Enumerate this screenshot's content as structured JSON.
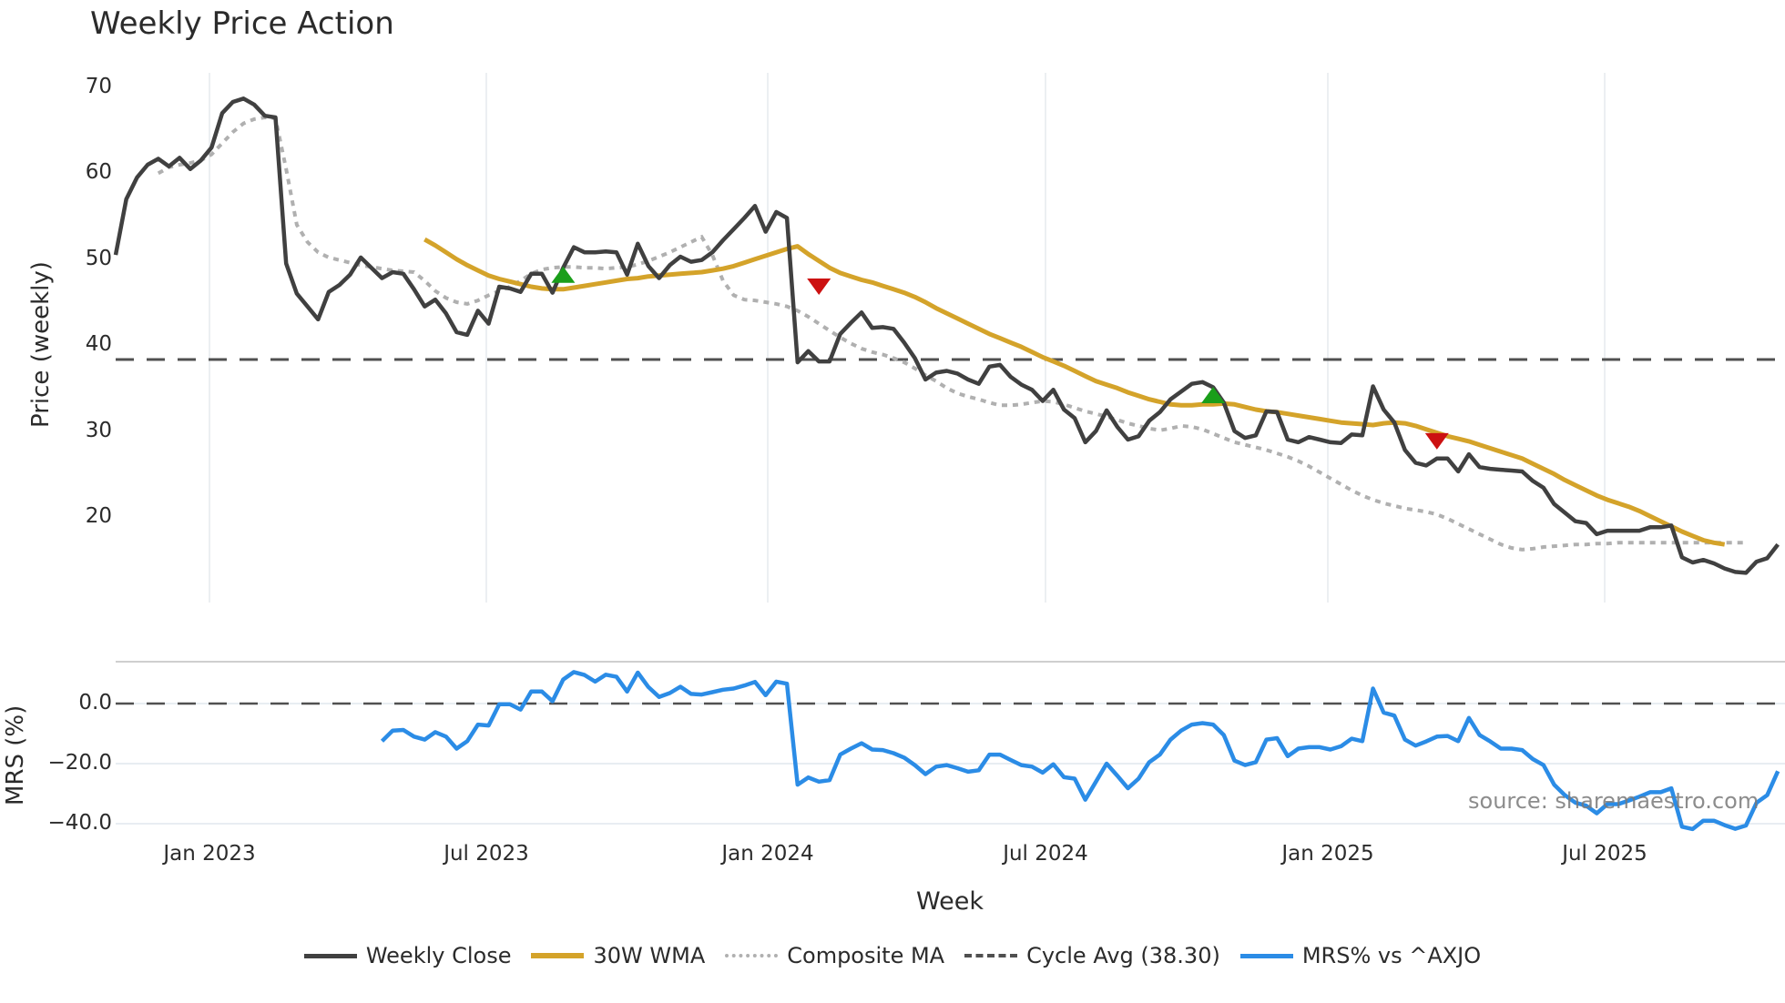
{
  "title": "Weekly Price Action",
  "source_note": "source: sharemaestro.com",
  "upper_axis": {
    "ylabel": "Price (weekly)",
    "yticks": [
      "70",
      "60",
      "50",
      "40",
      "30",
      "20"
    ]
  },
  "lower_axis": {
    "ylabel": "MRS (%)",
    "yticks": [
      "0.0",
      "−20.0",
      "−40.0"
    ]
  },
  "xaxis": {
    "xlabel": "Week",
    "xticks": [
      "Jan 2023",
      "Jul 2023",
      "Jan 2024",
      "Jul 2024",
      "Jan 2025",
      "Jul 2025"
    ]
  },
  "legend": [
    {
      "label": "Weekly Close",
      "color": "#404040",
      "style": "solid"
    },
    {
      "label": "30W WMA",
      "color": "#d4a32a",
      "style": "solid"
    },
    {
      "label": "Composite MA",
      "color": "#b0b0b0",
      "style": "dotted"
    },
    {
      "label": "Cycle Avg (38.30)",
      "color": "#505050",
      "style": "dashed"
    },
    {
      "label": "MRS% vs ^AXJO",
      "color": "#2b8ce6",
      "style": "solid"
    }
  ],
  "chart_data": [
    {
      "type": "line",
      "title": "Weekly Price Action",
      "xlabel": "Week",
      "ylabel": "Price (weekly)",
      "ylim": [
        10,
        72
      ],
      "xticks": [
        "Jan 2023",
        "Jul 2023",
        "Jan 2024",
        "Jul 2024",
        "Jan 2025",
        "Jul 2025"
      ],
      "x_start": "~Nov 2022 (weekly, 157 weeks)",
      "grid": "vertical at x ticks",
      "legend_position": "bottom center",
      "series": [
        {
          "name": "Weekly Close",
          "start_index": 0,
          "values": [
            50.5,
            57,
            59.5,
            61,
            61.7,
            60.8,
            61.8,
            60.5,
            61.5,
            63,
            67,
            68.3,
            68.7,
            68,
            66.7,
            66.5,
            49.5,
            46,
            44.5,
            43,
            46.2,
            47,
            48.2,
            50.2,
            49,
            47.8,
            48.5,
            48.3,
            46.5,
            44.5,
            45.3,
            43.7,
            41.5,
            41.2,
            44,
            42.5,
            46.8,
            46.6,
            46.2,
            48.3,
            48.3,
            46.1,
            49,
            51.4,
            50.8,
            50.8,
            50.9,
            50.8,
            48.2,
            51.8,
            49.2,
            47.8,
            49.3,
            50.3,
            49.7,
            49.9,
            50.8,
            52.2,
            53.5,
            54.8,
            56.2,
            53.2,
            55.5,
            54.8,
            38,
            39.3,
            38.1,
            38.1,
            41.3,
            42.6,
            43.8,
            42,
            42.1,
            41.9,
            40.3,
            38.5,
            36,
            36.8,
            37,
            36.7,
            36,
            35.5,
            37.5,
            37.7,
            36.3,
            35.4,
            34.8,
            33.5,
            34.8,
            32.5,
            31.5,
            28.7,
            30,
            32.4,
            30.5,
            29,
            29.4,
            31.2,
            32.2,
            33.7,
            34.6,
            35.5,
            35.7,
            35.1,
            33.3,
            30,
            29.2,
            29.5,
            32.3,
            32.2,
            29,
            28.7,
            29.3,
            29,
            28.7,
            28.6,
            29.6,
            29.5,
            35.2,
            32.5,
            31,
            27.8,
            26.3,
            26,
            26.8,
            26.8,
            25.3,
            27.3,
            25.8,
            25.6,
            25.5,
            25.4,
            25.3,
            24.2,
            23.4,
            21.5,
            20.5,
            19.5,
            19.3,
            18,
            18.4,
            18.4,
            18.4,
            18.4,
            18.8,
            18.8,
            19,
            15.3,
            14.7,
            15,
            14.6,
            14,
            13.6,
            13.5,
            14.8,
            15.2,
            16.8
          ]
        },
        {
          "name": "30W WMA",
          "start_index": 29,
          "values": [
            52.3,
            51.6,
            50.8,
            50,
            49.3,
            48.7,
            48.1,
            47.7,
            47.4,
            47.1,
            46.8,
            46.6,
            46.5,
            46.5,
            46.7,
            46.9,
            47.1,
            47.3,
            47.5,
            47.7,
            47.8,
            48,
            48.1,
            48.2,
            48.3,
            48.4,
            48.5,
            48.7,
            48.9,
            49.2,
            49.6,
            50,
            50.4,
            50.8,
            51.2,
            51.5,
            50.6,
            49.8,
            49,
            48.4,
            48,
            47.6,
            47.3,
            46.9,
            46.5,
            46.1,
            45.6,
            45,
            44.3,
            43.7,
            43.1,
            42.5,
            41.9,
            41.3,
            40.8,
            40.3,
            39.8,
            39.2,
            38.6,
            38.1,
            37.6,
            37,
            36.4,
            35.8,
            35.4,
            35,
            34.5,
            34.1,
            33.7,
            33.4,
            33.1,
            33,
            33,
            33.1,
            33.1,
            33.2,
            33.1,
            32.8,
            32.5,
            32.3,
            32.2,
            32,
            31.8,
            31.6,
            31.4,
            31.2,
            31,
            30.9,
            30.8,
            30.7,
            30.9,
            31,
            30.9,
            30.6,
            30.2,
            29.8,
            29.4,
            29.1,
            28.8,
            28.4,
            28,
            27.6,
            27.2,
            26.8,
            26.2,
            25.6,
            25,
            24.3,
            23.7,
            23.1,
            22.5,
            22,
            21.6,
            21.2,
            20.7,
            20.1,
            19.5,
            18.9,
            18.3,
            17.8,
            17.3,
            17,
            16.8
          ]
        },
        {
          "name": "Composite MA",
          "start_index": 4,
          "values": [
            60,
            60.7,
            61,
            61.2,
            61.5,
            62.2,
            63.5,
            64.8,
            65.8,
            66.3,
            66.5,
            66.4,
            60.5,
            54,
            52,
            50.8,
            50.2,
            49.9,
            49.6,
            49.3,
            49.1,
            48.9,
            48.7,
            48.6,
            48.5,
            47.5,
            46.3,
            45.5,
            45,
            44.8,
            45.2,
            45.8,
            46.3,
            46.8,
            47.5,
            48.3,
            48.8,
            49,
            49.1,
            49.1,
            49,
            49,
            48.9,
            49,
            49.1,
            49.4,
            49.8,
            50.3,
            50.8,
            51.4,
            52,
            52.6,
            50.5,
            47.5,
            45.8,
            45.3,
            45.2,
            45,
            44.8,
            44.5,
            44,
            43.3,
            42.5,
            41.7,
            40.9,
            40.2,
            39.6,
            39.2,
            38.9,
            38.5,
            38,
            37.3,
            36.5,
            35.8,
            35,
            34.4,
            34,
            33.7,
            33.3,
            33,
            33,
            33.1,
            33.3,
            33.5,
            33.4,
            33.1,
            32.7,
            32.3,
            32,
            31.7,
            31.3,
            30.9,
            30.6,
            30.3,
            30.1,
            30.3,
            30.6,
            30.5,
            30.2,
            29.7,
            29.2,
            28.7,
            28.4,
            28.1,
            27.8,
            27.4,
            27,
            26.5,
            25.9,
            25.2,
            24.5,
            23.8,
            23.1,
            22.5,
            22,
            21.6,
            21.3,
            21,
            20.8,
            20.6,
            20.3,
            19.8,
            19.2,
            18.6,
            18,
            17.4,
            16.8,
            16.4,
            16.2,
            16.3,
            16.5,
            16.6,
            16.7,
            16.8,
            16.8,
            16.9,
            16.9,
            17,
            17,
            17,
            17,
            17,
            17,
            17,
            17,
            17,
            17,
            17,
            17,
            17
          ]
        },
        {
          "name": "Cycle Avg (38.30)",
          "constant": 38.3
        }
      ],
      "signals": [
        {
          "type": "buy",
          "shape": "triangle-up",
          "color": "#1a9e1a",
          "index": 42,
          "value": 48.2
        },
        {
          "type": "sell",
          "shape": "triangle-down",
          "color": "#cc1111",
          "index": 66,
          "value": 46.8
        },
        {
          "type": "buy",
          "shape": "triangle-up",
          "color": "#1a9e1a",
          "index": 103,
          "value": 34.2
        },
        {
          "type": "sell",
          "shape": "triangle-down",
          "color": "#cc1111",
          "index": 124,
          "value": 28.8
        }
      ]
    },
    {
      "type": "line",
      "ylabel": "MRS (%)",
      "ylim": [
        -46,
        14
      ],
      "yticks": [
        0,
        -20,
        -40
      ],
      "reference_line": 0,
      "series": [
        {
          "name": "MRS% vs ^AXJO",
          "start_index": 25,
          "values": [
            -12.5,
            -9,
            -8.8,
            -11,
            -12,
            -9.5,
            -11,
            -15,
            -12.5,
            -7,
            -7.3,
            -0.2,
            -0.2,
            -2,
            4,
            4,
            0.8,
            8,
            10.5,
            9.5,
            7.3,
            9.6,
            8.9,
            4,
            10.3,
            5.5,
            2.2,
            3.5,
            5.6,
            3.2,
            3,
            3.8,
            4.6,
            5,
            6,
            7.2,
            2.8,
            7.3,
            6.6,
            -27,
            -24.6,
            -26,
            -25.5,
            -17,
            -15,
            -13.2,
            -15.3,
            -15.5,
            -16.5,
            -18,
            -20.5,
            -23.5,
            -21,
            -20.5,
            -21.5,
            -22.7,
            -22.2,
            -17,
            -17,
            -18.8,
            -20.5,
            -21,
            -23,
            -20.2,
            -24.5,
            -25,
            -32,
            -26,
            -20,
            -24,
            -28.2,
            -25,
            -19.5,
            -17,
            -12,
            -9,
            -7,
            -6.5,
            -7,
            -10.5,
            -19,
            -20.5,
            -19.5,
            -12,
            -11.5,
            -17.5,
            -15,
            -14.5,
            -14.5,
            -15.3,
            -14.2,
            -11.7,
            -12.5,
            5,
            -3,
            -4,
            -12,
            -14,
            -12.6,
            -11,
            -10.8,
            -12.5,
            -4.8,
            -10.5,
            -12.6,
            -15,
            -15,
            -15.5,
            -18.5,
            -20.5,
            -27,
            -30.5,
            -33,
            -34,
            -36.5,
            -33.5,
            -33.5,
            -32.3,
            -31,
            -29.5,
            -29.5,
            -28.2,
            -41,
            -41.8,
            -39,
            -39,
            -40.5,
            -41.7,
            -40.6,
            -33,
            -30.5,
            -22.5
          ]
        }
      ]
    }
  ]
}
